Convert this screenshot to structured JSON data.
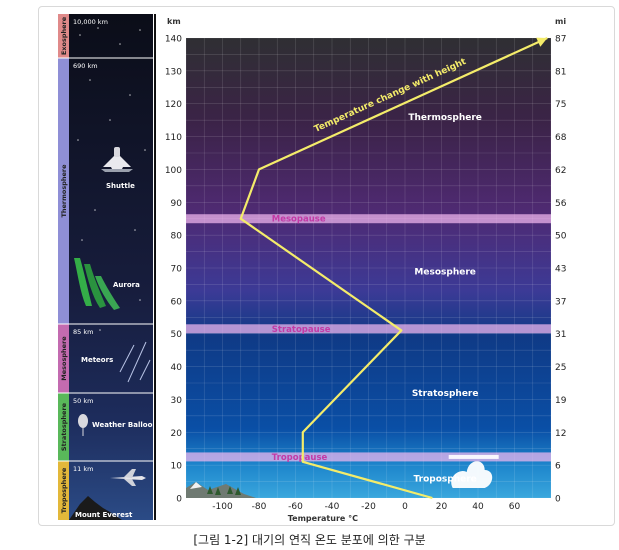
{
  "caption": "[그림 1-2] 대기의 연직 온도 분포에 의한 구분",
  "left_column": {
    "layers": [
      {
        "name": "Exosphere",
        "label": "10,000 km",
        "color": "#e08a8a",
        "top_km": 140,
        "bottom_km": 139
      },
      {
        "name": "Thermosphere",
        "label": "690 km",
        "color": "#8f8fd6",
        "top_km": 139,
        "bottom_km": 85
      },
      {
        "name": "Mesosphere",
        "label": "85 km",
        "color": "#c36bb0",
        "top_km": 85,
        "bottom_km": 50
      },
      {
        "name": "Stratosphere",
        "label": "50 km",
        "color": "#59b85a",
        "top_km": 50,
        "bottom_km": 11
      },
      {
        "name": "Troposphere",
        "label": "11 km",
        "color": "#e3b83a",
        "top_km": 11,
        "bottom_km": 0
      }
    ],
    "objects": {
      "shuttle": "Shuttle",
      "aurora": "Aurora",
      "meteors": "Meteors",
      "balloon": "Weather Balloon",
      "everest": "Mount Everest"
    }
  },
  "chart_data": {
    "type": "line",
    "xlabel": "Temperature °C",
    "y_left_unit": "km",
    "y_right_unit": "mi",
    "xlim": [
      -120,
      80
    ],
    "ylim": [
      0,
      140
    ],
    "x_ticks": [
      -100,
      -80,
      -60,
      -40,
      -20,
      0,
      20,
      40,
      60
    ],
    "y_ticks_km": [
      0,
      10,
      20,
      30,
      40,
      50,
      60,
      70,
      80,
      90,
      100,
      110,
      120,
      130,
      140
    ],
    "y_ticks_mi": [
      "0",
      "6",
      "12",
      "19",
      "25",
      "31",
      "37",
      "43",
      "50",
      "56",
      "62",
      "68",
      "75",
      "81",
      "87"
    ],
    "grid": true,
    "temperature_profile": [
      {
        "t": 15,
        "km": 0
      },
      {
        "t": -56,
        "km": 11
      },
      {
        "t": -56,
        "km": 20
      },
      {
        "t": -2,
        "km": 51
      },
      {
        "t": -90,
        "km": 85
      },
      {
        "t": -80,
        "km": 100
      },
      {
        "t": 78,
        "km": 140
      }
    ],
    "pauses": [
      {
        "name": "Tropopause",
        "km": 12.5
      },
      {
        "name": "Stratopause",
        "km": 51.5
      },
      {
        "name": "Mesopause",
        "km": 85
      }
    ],
    "layer_labels": [
      {
        "name": "Thermosphere",
        "t": 22,
        "km": 115
      },
      {
        "name": "Mesosphere",
        "t": 22,
        "km": 68
      },
      {
        "name": "Stratosphere",
        "t": 22,
        "km": 31
      },
      {
        "name": "Troposphere",
        "t": 22,
        "km": 5
      }
    ],
    "annotation": "Temperature change with height"
  }
}
